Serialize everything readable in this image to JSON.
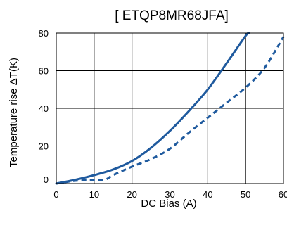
{
  "chart_data": {
    "type": "line",
    "title": "[ ETQP8MR68JFA]",
    "xlabel": "DC Bias (A)",
    "ylabel": "Temperature rise ΔT(K)",
    "xlim": [
      0,
      60
    ],
    "ylim": [
      0,
      80
    ],
    "x_ticks": [
      0,
      10,
      20,
      30,
      40,
      50,
      60
    ],
    "y_ticks": [
      0,
      20,
      40,
      60,
      80
    ],
    "grid": true,
    "series": [
      {
        "style": "solid",
        "color": "#1f5a9e",
        "x": [
          0,
          5,
          10,
          15,
          20,
          25,
          30,
          35,
          40,
          45,
          50,
          51
        ],
        "y": [
          0,
          2,
          4.5,
          7.5,
          12,
          19,
          28,
          38.5,
          50,
          64,
          78.5,
          80
        ]
      },
      {
        "style": "dashed",
        "color": "#1f5a9e",
        "x": [
          0,
          5,
          10,
          13,
          15,
          20,
          25,
          30,
          35,
          40,
          45,
          50,
          55,
          60
        ],
        "y": [
          0,
          1.5,
          1.8,
          2.2,
          4.5,
          9,
          13,
          18.5,
          27,
          35,
          43,
          51,
          61.5,
          78
        ]
      }
    ]
  }
}
